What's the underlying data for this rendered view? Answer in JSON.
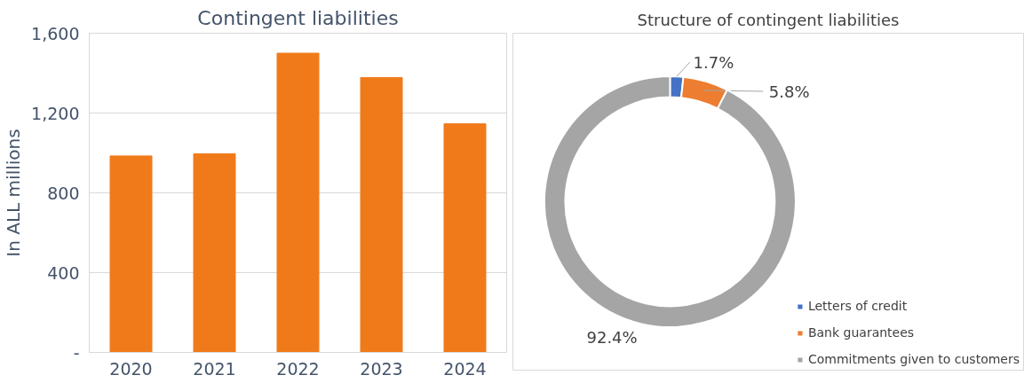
{
  "chart_data": [
    {
      "type": "bar",
      "title": "Contingent liabilities",
      "ylabel": "In ALL millions",
      "categories": [
        "2020",
        "2021",
        "2022",
        "2023",
        "2024"
      ],
      "values": [
        985,
        996,
        1500,
        1378,
        1146
      ],
      "color": "#f07a1a",
      "ylim": [
        0,
        1600
      ],
      "yticks": [
        {
          "value": 0,
          "label": "-"
        },
        400,
        800,
        {
          "value": 1200,
          "label": "1,200"
        },
        {
          "value": 1600,
          "label": "1,600"
        }
      ],
      "grid": "y"
    },
    {
      "type": "donut",
      "title": "Structure of contingent liabilities",
      "categories": [
        "Letters of credit",
        "Bank guarantees",
        "Commitments given to customers"
      ],
      "values": [
        1.7,
        5.8,
        92.4
      ],
      "colors": [
        "#4472c4",
        "#ed7d31",
        "#a5a5a5"
      ],
      "value_labels": [
        "1.7%",
        "5.8%",
        "92.4%"
      ],
      "legend": "bottom right"
    }
  ]
}
